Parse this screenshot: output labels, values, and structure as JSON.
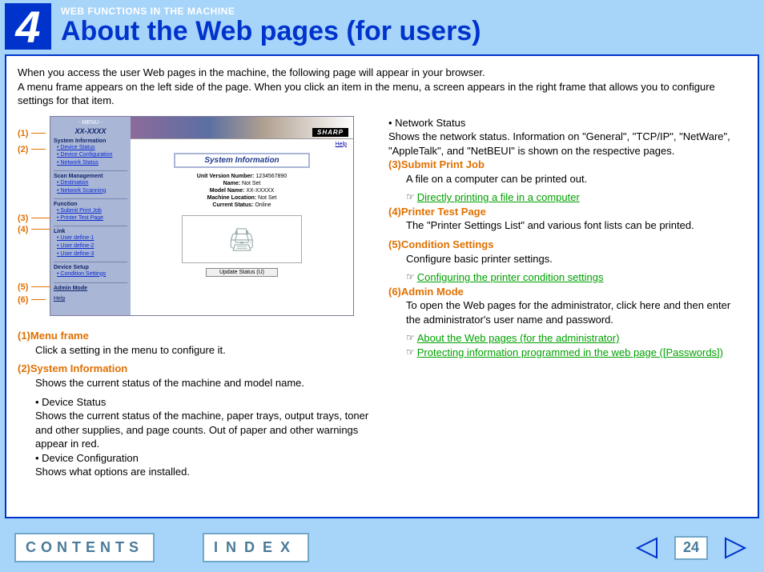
{
  "chapter_number": "4",
  "kicker": "WEB FUNCTIONS IN THE MACHINE",
  "title": "About the Web pages (for users)",
  "intro": "When you access the user Web pages in the machine, the following page will appear in your browser.\nA menu frame appears on the left side of the page. When you click an item in the menu, a screen appears in the right frame that allows you to configure settings for that item.",
  "screenshot": {
    "menu": {
      "header": "- MENU -",
      "model": "XX-XXXX",
      "sections": [
        {
          "title": "System Information",
          "items": [
            "Device Status",
            "Device Configuration",
            "Network Status"
          ]
        },
        {
          "title": "Scan Management",
          "items": [
            "Destination",
            "Network Scanning"
          ]
        },
        {
          "title": "Function",
          "items": [
            "Submit Print Job",
            "Printer Test Page"
          ]
        },
        {
          "title": "Link",
          "items": [
            "User define-1",
            "User define-2",
            "User define-3"
          ]
        },
        {
          "title": "Device Setup",
          "items": [
            "Condition Settings"
          ]
        }
      ],
      "admin": "Admin Mode",
      "help": "Help"
    },
    "main": {
      "logo": "SHARP",
      "help": "Help",
      "panel_title": "System Information",
      "rows": [
        {
          "k": "Unit Version Number:",
          "v": "1234567890"
        },
        {
          "k": "Name:",
          "v": "Not Set"
        },
        {
          "k": "Model Name:",
          "v": "XX-XXXXX"
        },
        {
          "k": "Machine Location:",
          "v": "Not Set"
        },
        {
          "k": "Current Status:",
          "v": "Online"
        }
      ],
      "update_btn": "Update Status (U)"
    },
    "callouts": [
      "(1)",
      "(2)",
      "(3)",
      "(4)",
      "(5)",
      "(6)"
    ]
  },
  "items_left": [
    {
      "n": "(1)",
      "title": "Menu frame",
      "body": "Click a setting in the menu to configure it."
    },
    {
      "n": "(2)",
      "title": "System Information",
      "body": "Shows the current status of the machine and model name.",
      "subs": [
        {
          "t": "Device Status",
          "b": "Shows the current status of the machine, paper trays, output trays, toner and other supplies, and page counts. Out of paper and other warnings appear in red."
        },
        {
          "t": "Device Configuration",
          "b": "Shows what options are installed."
        }
      ]
    }
  ],
  "items_right_pre": [
    {
      "t": "Network Status",
      "b": "Shows the network status. Information on \"General\", \"TCP/IP\", \"NetWare\", \"AppleTalk\", and \"NetBEUI\" is shown on the respective pages."
    }
  ],
  "items_right": [
    {
      "n": "(3)",
      "title": "Submit Print Job",
      "body": "A file on a computer can be printed out.",
      "xrefs": [
        "Directly printing a file in a computer"
      ]
    },
    {
      "n": "(4)",
      "title": "Printer Test Page",
      "body": "The \"Printer Settings List\" and various font lists can be printed."
    },
    {
      "n": "(5)",
      "title": "Condition Settings",
      "body": "Configure basic printer settings.",
      "xrefs": [
        "Configuring the printer condition settings"
      ]
    },
    {
      "n": "(6)",
      "title": "Admin Mode",
      "body": "To open the Web pages for the administrator, click here and then enter the administrator's user name and password.",
      "xrefs": [
        "About the Web pages (for the administrator)",
        "Protecting information programmed in the web page ([Passwords])"
      ]
    }
  ],
  "footer": {
    "contents": "CONTENTS",
    "index": "INDEX",
    "page": "24"
  },
  "colors": {
    "page_bg": "#a7d4f9",
    "accent": "#0033cc",
    "callout": "#e07000",
    "link_green": "#00a000"
  }
}
